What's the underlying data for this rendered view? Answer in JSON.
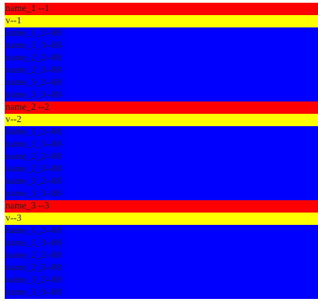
{
  "groups": [
    {
      "title": "name_1 --1",
      "value": "v--1",
      "items": [
        "name_1_2--88",
        "name_1_3--88",
        "name_2_2--88",
        "name_2_3--88",
        "name_3_2--88",
        "name_3_3--88"
      ]
    },
    {
      "title": "name_2 --2",
      "value": "v--2",
      "items": [
        "name_1_2--88",
        "name_1_3--88",
        "name_2_2--88",
        "name_2_3--88",
        "name_3_2--88",
        "name_3_3--88"
      ]
    },
    {
      "title": "name_3 --3",
      "value": "v--3",
      "items": [
        "name_1_2--88",
        "name_1_3--88",
        "name_2_2--88",
        "name_2_3--88",
        "name_3_2--88",
        "name_3_3--88"
      ]
    }
  ]
}
